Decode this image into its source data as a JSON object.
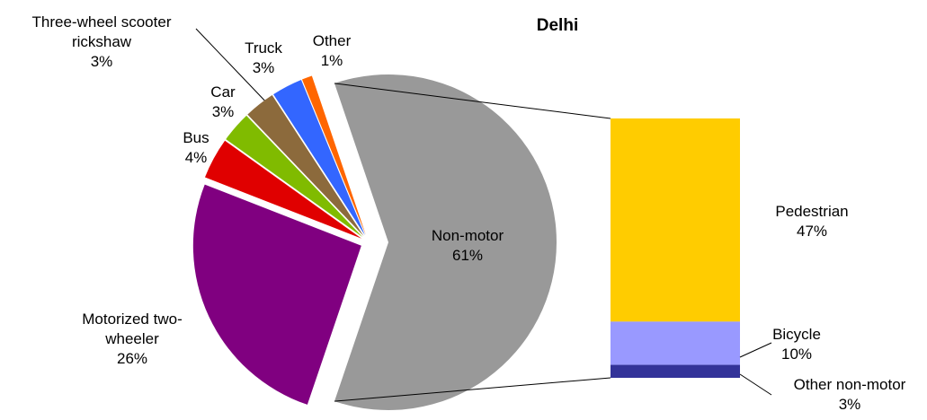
{
  "chart_data": {
    "type": "pie_of_bar",
    "title": "Delhi",
    "categories": [
      "Non-motor",
      "Motorized two-wheeler",
      "Bus",
      "Car",
      "Three-wheel scooter rickshaw",
      "Truck",
      "Other"
    ],
    "values": [
      61,
      26,
      4,
      3,
      3,
      3,
      1
    ],
    "value_labels": [
      "61%",
      "26%",
      "4%",
      "3%",
      "3%",
      "3%",
      "1%"
    ],
    "colors": [
      "#999999",
      "#800080",
      "#e00000",
      "#80bb00",
      "#8c6a3c",
      "#3366ff",
      "#ff6600"
    ],
    "breakout": {
      "categories": [
        "Pedestrian",
        "Bicycle",
        "Other non-motor"
      ],
      "values": [
        47,
        10,
        3
      ],
      "value_labels": [
        "47%",
        "10%",
        "3%"
      ],
      "colors": [
        "#ffcc00",
        "#9999ff",
        "#333399"
      ]
    }
  }
}
